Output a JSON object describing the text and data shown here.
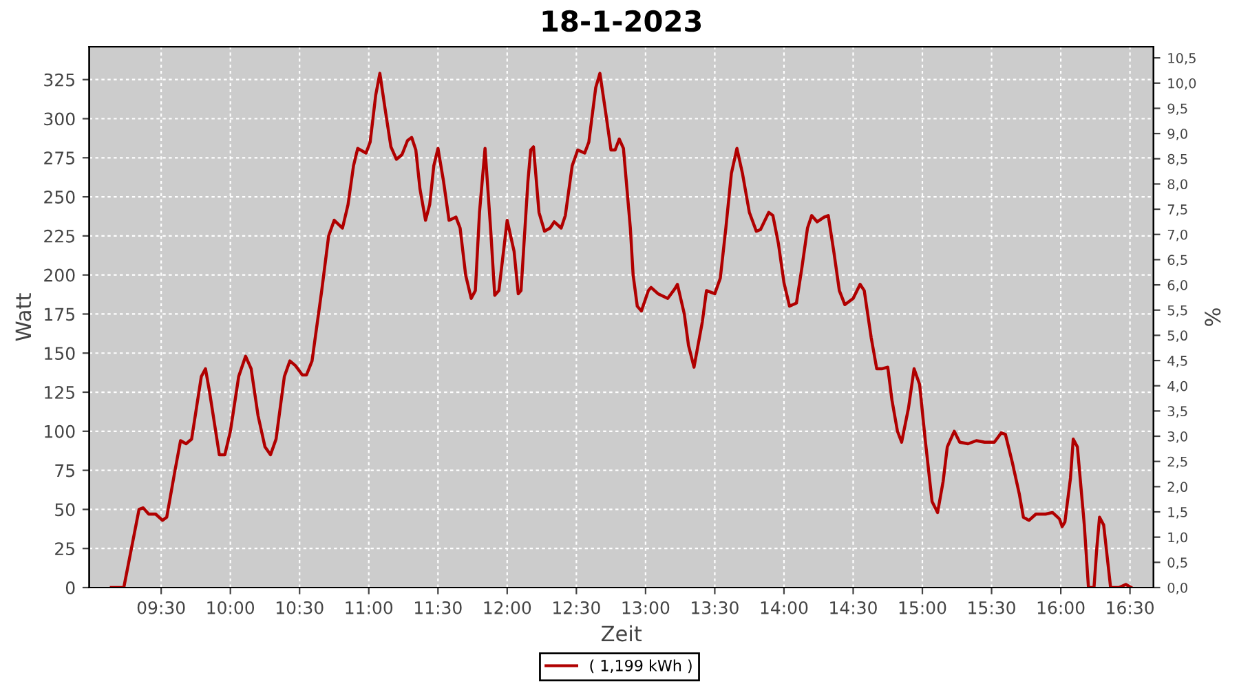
{
  "chart_data": {
    "type": "line",
    "title": "18-1-2023",
    "xlabel": "Zeit",
    "ylabel": "Watt",
    "y2label": "%",
    "xlim": [
      8.98,
      16.67
    ],
    "ylim": [
      0,
      346
    ],
    "y2lim": [
      0,
      10.72
    ],
    "xticks": [
      {
        "value": 9.5,
        "label": "09:30"
      },
      {
        "value": 10.0,
        "label": "10:00"
      },
      {
        "value": 10.5,
        "label": "10:30"
      },
      {
        "value": 11.0,
        "label": "11:00"
      },
      {
        "value": 11.5,
        "label": "11:30"
      },
      {
        "value": 12.0,
        "label": "12:00"
      },
      {
        "value": 12.5,
        "label": "12:30"
      },
      {
        "value": 13.0,
        "label": "13:00"
      },
      {
        "value": 13.5,
        "label": "13:30"
      },
      {
        "value": 14.0,
        "label": "14:00"
      },
      {
        "value": 14.5,
        "label": "14:30"
      },
      {
        "value": 15.0,
        "label": "15:00"
      },
      {
        "value": 15.5,
        "label": "15:30"
      },
      {
        "value": 16.0,
        "label": "16:00"
      },
      {
        "value": 16.5,
        "label": "16:30"
      }
    ],
    "yticks": [
      0,
      25,
      50,
      75,
      100,
      125,
      150,
      175,
      200,
      225,
      250,
      275,
      300,
      325
    ],
    "y2ticks": [
      {
        "value": 0,
        "label": "0,0"
      },
      {
        "value": 0.5,
        "label": "0,5"
      },
      {
        "value": 1,
        "label": "1,0"
      },
      {
        "value": 1.5,
        "label": "1,5"
      },
      {
        "value": 2,
        "label": "2,0"
      },
      {
        "value": 2.5,
        "label": "2,5"
      },
      {
        "value": 3,
        "label": "3,0"
      },
      {
        "value": 3.5,
        "label": "3,5"
      },
      {
        "value": 4,
        "label": "4,0"
      },
      {
        "value": 4.5,
        "label": "4,5"
      },
      {
        "value": 5,
        "label": "5,0"
      },
      {
        "value": 5.5,
        "label": "5,5"
      },
      {
        "value": 6,
        "label": "6,0"
      },
      {
        "value": 6.5,
        "label": "6,5"
      },
      {
        "value": 7,
        "label": "7,0"
      },
      {
        "value": 7.5,
        "label": "7,5"
      },
      {
        "value": 8,
        "label": "8,0"
      },
      {
        "value": 8.5,
        "label": "8,5"
      },
      {
        "value": 9,
        "label": "9,0"
      },
      {
        "value": 9.5,
        "label": "9,5"
      },
      {
        "value": 10,
        "label": "10,0"
      },
      {
        "value": 10.5,
        "label": "10,5"
      }
    ],
    "grid": true,
    "legend": "bottom",
    "marker": "none",
    "line_style": "solid",
    "series": [
      {
        "name": "( 1,199 kWh )",
        "color": "#b00000",
        "x": [
          9.14,
          9.23,
          9.34,
          9.37,
          9.41,
          9.46,
          9.51,
          9.54,
          9.6,
          9.64,
          9.68,
          9.72,
          9.79,
          9.82,
          9.85,
          9.92,
          9.96,
          10.0,
          10.06,
          10.11,
          10.15,
          10.2,
          10.25,
          10.29,
          10.33,
          10.39,
          10.43,
          10.47,
          10.52,
          10.55,
          10.59,
          10.66,
          10.71,
          10.75,
          10.81,
          10.85,
          10.89,
          10.92,
          10.98,
          11.01,
          11.05,
          11.08,
          11.12,
          11.16,
          11.2,
          11.24,
          11.28,
          11.31,
          11.34,
          11.37,
          11.41,
          11.44,
          11.47,
          11.5,
          11.54,
          11.58,
          11.63,
          11.66,
          11.7,
          11.74,
          11.77,
          11.8,
          11.84,
          11.88,
          11.91,
          11.94,
          12.0,
          12.05,
          12.08,
          12.1,
          12.15,
          12.17,
          12.19,
          12.23,
          12.27,
          12.31,
          12.34,
          12.39,
          12.42,
          12.47,
          12.51,
          12.56,
          12.59,
          12.64,
          12.67,
          12.71,
          12.75,
          12.78,
          12.81,
          12.84,
          12.89,
          12.91,
          12.94,
          12.97,
          13.02,
          13.04,
          13.09,
          13.16,
          13.21,
          13.23,
          13.28,
          13.31,
          13.35,
          13.41,
          13.44,
          13.5,
          13.54,
          13.58,
          13.62,
          13.66,
          13.7,
          13.75,
          13.8,
          13.83,
          13.89,
          13.92,
          13.96,
          14.0,
          14.04,
          14.09,
          14.13,
          14.17,
          14.2,
          14.24,
          14.29,
          14.32,
          14.36,
          14.4,
          14.44,
          14.5,
          14.55,
          14.58,
          14.63,
          14.67,
          14.71,
          14.75,
          14.78,
          14.82,
          14.85,
          14.9,
          14.94,
          14.98,
          15.02,
          15.07,
          15.11,
          15.15,
          15.18,
          15.23,
          15.27,
          15.33,
          15.39,
          15.45,
          15.52,
          15.57,
          15.6,
          15.65,
          15.7,
          15.73,
          15.77,
          15.82,
          15.89,
          15.94,
          15.99,
          16.01,
          16.03,
          16.07,
          16.09,
          16.12,
          16.17,
          16.2,
          16.24,
          16.26,
          16.28,
          16.31,
          16.36,
          16.42,
          16.47,
          16.51
        ],
        "values": [
          0,
          0,
          50,
          51,
          47,
          47,
          43,
          45,
          75,
          94,
          92,
          95,
          135,
          140,
          125,
          85,
          85,
          100,
          135,
          148,
          140,
          110,
          90,
          85,
          95,
          135,
          145,
          142,
          136,
          136,
          145,
          190,
          225,
          235,
          230,
          245,
          270,
          281,
          278,
          285,
          315,
          329,
          305,
          282,
          274,
          277,
          286,
          288,
          280,
          255,
          235,
          245,
          270,
          281,
          260,
          235,
          237,
          230,
          200,
          185,
          190,
          240,
          281,
          230,
          187,
          190,
          235,
          215,
          188,
          190,
          260,
          280,
          282,
          240,
          228,
          230,
          234,
          230,
          238,
          270,
          280,
          278,
          285,
          320,
          329,
          305,
          280,
          280,
          287,
          281,
          230,
          200,
          180,
          177,
          190,
          192,
          188,
          185,
          191,
          194,
          175,
          155,
          141,
          170,
          190,
          188,
          198,
          230,
          265,
          281,
          265,
          240,
          228,
          229,
          240,
          238,
          220,
          195,
          180,
          182,
          205,
          230,
          238,
          234,
          237,
          238,
          215,
          190,
          181,
          185,
          194,
          190,
          160,
          140,
          140,
          141,
          120,
          100,
          93,
          115,
          140,
          130,
          95,
          55,
          48,
          68,
          90,
          100,
          93,
          92,
          94,
          93,
          93,
          99,
          98,
          80,
          60,
          45,
          43,
          47,
          47,
          48,
          44,
          39,
          42,
          70,
          95,
          90,
          40,
          0,
          0,
          25,
          45,
          40,
          0,
          0,
          2,
          0
        ]
      }
    ]
  }
}
